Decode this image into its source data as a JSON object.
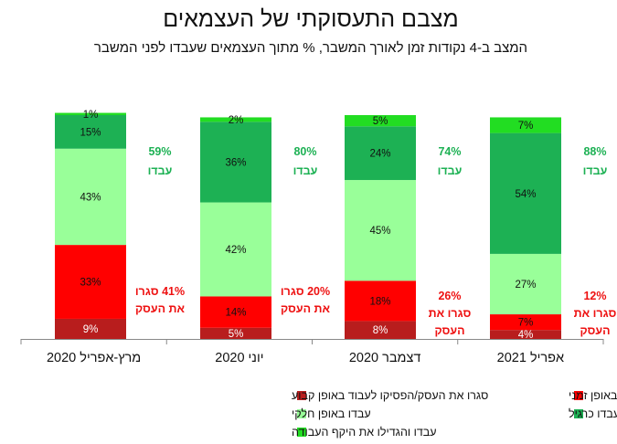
{
  "chart_data": {
    "type": "bar",
    "stacked": true,
    "title": "מצבם התעסוקתי של העצמאים",
    "subtitle": "המצב ב-4 נקודות זמן לאורך המשבר, % מתוך העצמאים שעבדו לפני המשבר",
    "categories": [
      "מרץ-אפריל 2020",
      "יוני 2020",
      "דצמבר 2020",
      "אפריל 2021"
    ],
    "series": [
      {
        "name": "סגרו את העסק/הפסיקו לעבוד באופן קבוע",
        "color": "#b81d1d",
        "values": [
          9,
          5,
          8,
          4
        ]
      },
      {
        "name": "סגרו את העסק/הפסיקו לעבוד באופן זמני",
        "color": "#ff0000",
        "values": [
          33,
          14,
          18,
          7
        ]
      },
      {
        "name": "עבדו באופן חלקי",
        "color": "#99ff99",
        "values": [
          43,
          42,
          45,
          27
        ]
      },
      {
        "name": "עבדו כרגיל",
        "color": "#1db154",
        "values": [
          15,
          36,
          24,
          54
        ]
      },
      {
        "name": "עבדו והגדילו את היקף העבודה",
        "color": "#22dd22",
        "values": [
          1,
          2,
          5,
          7
        ]
      }
    ],
    "data_labels": [
      [
        "9%",
        "33%",
        "43%",
        "15%",
        "1%"
      ],
      [
        "5%",
        "14%",
        "42%",
        "36%",
        "2%"
      ],
      [
        "8%",
        "18%",
        "45%",
        "24%",
        "5%"
      ],
      [
        "4%",
        "7%",
        "27%",
        "54%",
        "7%"
      ]
    ],
    "worked_annotations": [
      {
        "percent": "59%",
        "label": "עבדו"
      },
      {
        "percent": "80%",
        "label": "עבדו"
      },
      {
        "percent": "74%",
        "label": "עבדו"
      },
      {
        "percent": "88%",
        "label": "עבדו"
      }
    ],
    "closed_annotations": [
      {
        "line1": "41% סגרו",
        "line2": "את העסק"
      },
      {
        "line1": "20% סגרו",
        "line2": "את העסק"
      },
      {
        "line1": "26%",
        "line2": "סגרו את",
        "line3": "העסק"
      },
      {
        "line1": "12%",
        "line2": "סגרו את",
        "line3": "העסק"
      }
    ],
    "colors": {
      "worked_text": "#1db154",
      "closed_text": "#ee1111"
    },
    "legend_position": "bottom",
    "grid": false
  }
}
